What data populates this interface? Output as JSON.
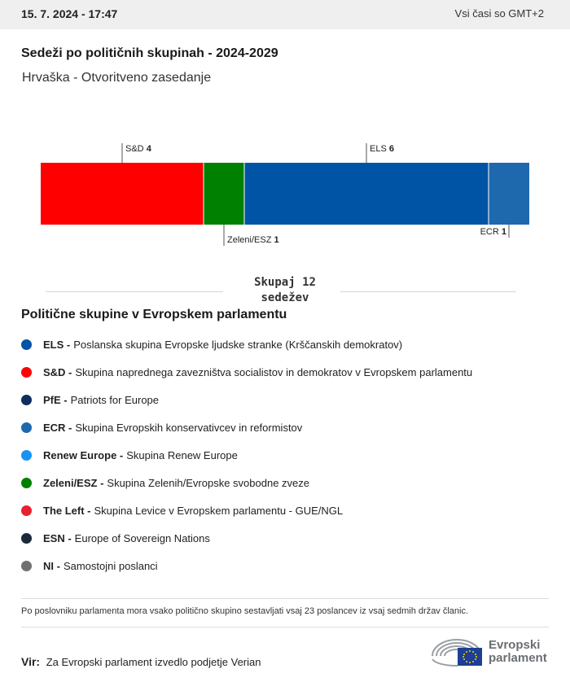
{
  "header": {
    "datetime": "15. 7. 2024 - 17:47",
    "timezone": "Vsi časi so GMT+2"
  },
  "title": "Sedeži po političnih skupinah - 2024-2029",
  "subtitle": "Hrvaška - Otvoritveno zasedanje",
  "chart_data": {
    "type": "bar",
    "orientation": "horizontal-stacked",
    "total_seats": 12,
    "segments": [
      {
        "name": "S&D",
        "value": 4,
        "color": "#ff0000",
        "label_position": "top"
      },
      {
        "name": "Zeleni/ESZ",
        "value": 1,
        "color": "#008000",
        "label_position": "bottom"
      },
      {
        "name": "ELS",
        "value": 6,
        "color": "#0054a5",
        "label_position": "top"
      },
      {
        "name": "ECR",
        "value": 1,
        "color": "#1e69ad",
        "label_position": "bottom"
      }
    ]
  },
  "total": {
    "line1": "Skupaj 12",
    "line2": "sedežev"
  },
  "legend": {
    "title": "Politične skupine v Evropskem parlamentu",
    "items": [
      {
        "abbr": "ELS -",
        "desc": "Poslanska skupina Evropske ljudske stranke (Krščanskih demokratov)",
        "color": "#0054a5"
      },
      {
        "abbr": "S&D -",
        "desc": "Skupina naprednega zavezništva socialistov in demokratov v Evropskem parlamentu",
        "color": "#ff0000"
      },
      {
        "abbr": "PfE -",
        "desc": "Patriots for Europe",
        "color": "#0f2e5e"
      },
      {
        "abbr": "ECR -",
        "desc": "Skupina Evropskih konservativcev in reformistov",
        "color": "#1e69ad"
      },
      {
        "abbr": "Renew Europe -",
        "desc": "Skupina Renew Europe",
        "color": "#1793f5"
      },
      {
        "abbr": "Zeleni/ESZ -",
        "desc": "Skupina Zelenih/Evropske svobodne zveze",
        "color": "#008000"
      },
      {
        "abbr": "The Left -",
        "desc": "Skupina Levice v Evropskem parlamentu - GUE/NGL",
        "color": "#e8212f"
      },
      {
        "abbr": "ESN -",
        "desc": "Europe of Sovereign Nations",
        "color": "#1b2a3a"
      },
      {
        "abbr": "NI -",
        "desc": "Samostojni poslanci",
        "color": "#707070"
      }
    ]
  },
  "note": "Po poslovniku parlamenta mora vsako politično skupino sestavljati vsaj 23 poslancev iz vsaj sedmih držav članic.",
  "source": {
    "label": "Vir:",
    "text": "Za Evropski parlament izvedlo podjetje Verian"
  },
  "logo": {
    "line1": "Evropski",
    "line2": "parlament",
    "icon": "european-parliament-logo-icon"
  }
}
